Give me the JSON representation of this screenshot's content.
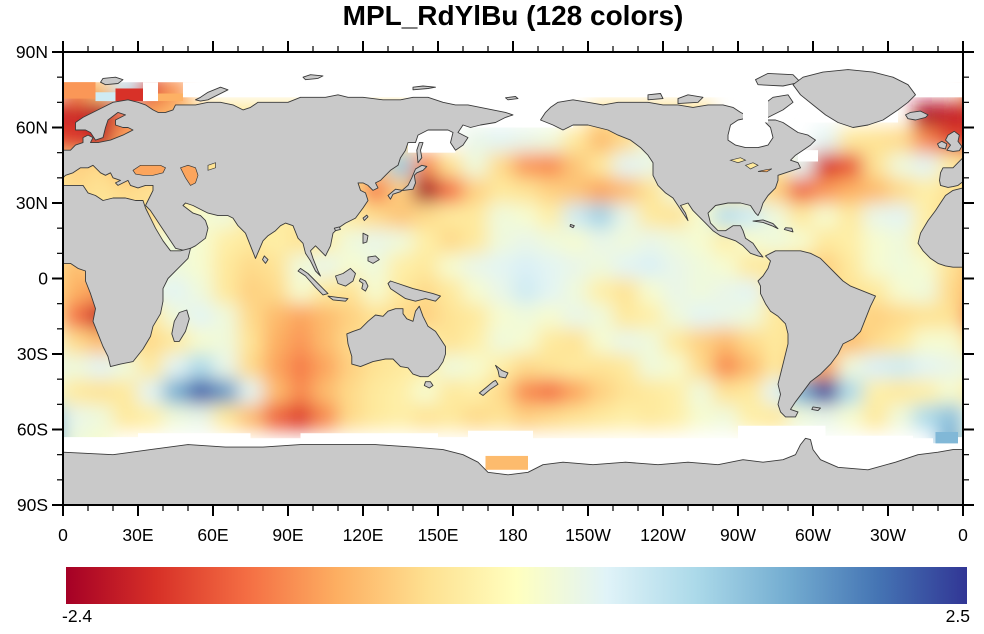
{
  "title": "MPL_RdYlBu (128 colors)",
  "chart_data": {
    "type": "heatmap",
    "title": "MPL_RdYlBu (128 colors)",
    "colormap": {
      "name": "MPL_RdYlBu",
      "n_colors": 128,
      "anchors": [
        "#a50026",
        "#d73027",
        "#f46d43",
        "#fdae61",
        "#fee090",
        "#ffffbf",
        "#e0f3f8",
        "#abd9e9",
        "#74add1",
        "#4575b4",
        "#313695"
      ]
    },
    "colorbar": {
      "orientation": "horizontal",
      "min": -2.4,
      "max": 2.5,
      "min_label": "-2.4",
      "max_label": "2.5"
    },
    "x_axis": {
      "tick_labels": [
        "0",
        "30E",
        "60E",
        "90E",
        "120E",
        "150E",
        "180",
        "150W",
        "120W",
        "90W",
        "60W",
        "30W",
        "0"
      ],
      "major_step_deg": 30,
      "minor_step_deg": 10,
      "lon_range": [
        0,
        360
      ]
    },
    "y_axis": {
      "tick_labels": [
        "90N",
        "60N",
        "30N",
        "0",
        "30S",
        "60S",
        "90S"
      ],
      "tick_lats": [
        90,
        60,
        30,
        0,
        -30,
        -60,
        -90
      ],
      "major_step_deg": 30,
      "minor_step_deg": 10,
      "lat_range": [
        -90,
        90
      ]
    },
    "map": {
      "land_color": "#c9c9c9",
      "coast_color": "#3a3a3a",
      "missing_color": "#ffffff",
      "projection": "equirectangular"
    },
    "grid": {
      "lon_start": 5,
      "lon_step": 10,
      "lat_start": 85,
      "lat_step": -10,
      "values": [
        [
          null,
          null,
          null,
          null,
          null,
          null,
          null,
          null,
          null,
          null,
          null,
          null,
          null,
          null,
          null,
          null,
          null,
          null,
          null,
          null,
          null,
          null,
          null,
          null,
          null,
          null,
          null,
          null,
          null,
          null,
          null,
          null,
          null,
          null,
          null,
          null
        ],
        [
          -1.2,
          -0.7,
          0.8,
          -1.8,
          -1.1,
          null,
          null,
          null,
          null,
          null,
          null,
          null,
          null,
          null,
          null,
          null,
          null,
          null,
          null,
          null,
          null,
          null,
          null,
          null,
          null,
          null,
          null,
          null,
          null,
          null,
          null,
          null,
          null,
          null,
          null,
          null
        ],
        [
          -2.0,
          -2.3,
          -1.4,
          -1.0,
          -0.8,
          -0.5,
          -0.3,
          -0.3,
          -0.3,
          -0.3,
          -0.3,
          -0.3,
          -0.3,
          -0.3,
          null,
          null,
          null,
          null,
          null,
          null,
          null,
          -0.4,
          -0.4,
          -0.4,
          -0.4,
          -0.4,
          null,
          null,
          null,
          null,
          null,
          null,
          null,
          null,
          -2.3,
          -2.1
        ],
        [
          -1.8,
          -2.1,
          -1.0,
          -0.6,
          -0.5,
          -0.4,
          -0.4,
          -0.4,
          -0.4,
          -0.4,
          -0.4,
          -0.4,
          -0.4,
          -0.3,
          null,
          null,
          0.4,
          0.5,
          0.4,
          0.3,
          -0.3,
          -0.8,
          -0.5,
          0.3,
          -0.3,
          -0.3,
          -0.3,
          null,
          null,
          null,
          0.5,
          -0.3,
          -0.4,
          -0.5,
          -1.2,
          -1.7
        ],
        [
          -0.6,
          -0.5,
          -0.9,
          -1.0,
          -1.0,
          -0.6,
          -0.4,
          -0.4,
          -0.4,
          -0.4,
          -0.4,
          -0.4,
          -0.5,
          1.2,
          -1.2,
          -0.4,
          0.3,
          -0.5,
          -1.1,
          -1.2,
          -0.7,
          -0.3,
          0.5,
          0.4,
          -0.3,
          -0.3,
          -0.3,
          -0.3,
          -0.3,
          0.5,
          -1.9,
          -1.6,
          -0.4,
          0.3,
          0.5,
          -0.2
        ],
        [
          -0.5,
          -0.4,
          -0.5,
          -0.4,
          -0.3,
          -0.3,
          -0.3,
          -0.3,
          -0.3,
          -0.4,
          -0.4,
          -0.5,
          -1.3,
          -0.6,
          -2.4,
          -1.4,
          -0.6,
          -0.3,
          -0.4,
          -0.6,
          -0.7,
          -1.0,
          -0.8,
          -0.4,
          0.3,
          0.2,
          -0.3,
          -0.3,
          -0.6,
          -1.5,
          -1.1,
          -0.9,
          -0.8,
          -0.5,
          -0.2,
          -0.4
        ],
        [
          -0.3,
          -0.3,
          -0.4,
          -0.5,
          -0.2,
          0.2,
          0.3,
          -0.2,
          -0.3,
          -0.2,
          0.2,
          -0.3,
          -0.5,
          -0.7,
          -0.5,
          -0.3,
          -0.3,
          0.3,
          0.2,
          -0.2,
          0.7,
          1.1,
          0.4,
          -0.3,
          -0.4,
          0.2,
          0.9,
          0.7,
          0.3,
          -0.3,
          0.2,
          -0.3,
          0.4,
          0.5,
          -0.2,
          -0.5
        ],
        [
          -0.3,
          -0.3,
          -0.3,
          0.2,
          0.3,
          0.2,
          -0.2,
          -0.3,
          -0.2,
          -0.4,
          -0.2,
          0.3,
          0.4,
          0.3,
          -0.2,
          -0.5,
          -0.3,
          0.3,
          0.4,
          0.3,
          0.2,
          0.4,
          0.3,
          0.4,
          0.3,
          0.2,
          -0.2,
          0.2,
          0.3,
          0.2,
          -0.3,
          -0.2,
          0.2,
          0.3,
          -0.2,
          -0.3
        ],
        [
          -0.8,
          -0.5,
          -0.3,
          0.2,
          0.3,
          0.2,
          -0.3,
          -0.5,
          -0.4,
          0.3,
          0.4,
          0.2,
          0.3,
          -0.2,
          -0.3,
          0.2,
          0.4,
          0.5,
          0.6,
          0.5,
          0.4,
          0.3,
          0.5,
          0.6,
          0.4,
          0.3,
          0.2,
          -0.3,
          -0.3,
          -0.5,
          -0.6,
          -0.3,
          0.2,
          0.3,
          0.2,
          -0.4
        ],
        [
          -0.9,
          -1.1,
          -0.3,
          0.4,
          0.5,
          0.3,
          -0.3,
          -0.6,
          -0.5,
          0.2,
          -0.3,
          -0.4,
          0.2,
          -0.3,
          -0.5,
          -0.3,
          0.2,
          0.4,
          0.7,
          0.5,
          0.3,
          -0.2,
          -0.4,
          0.2,
          0.4,
          0.3,
          0.4,
          0.5,
          -0.3,
          -0.4,
          -0.5,
          -0.4,
          -0.3,
          0.2,
          0.3,
          -0.5
        ],
        [
          -1.4,
          -2.1,
          -0.5,
          -0.3,
          0.3,
          0.5,
          0.3,
          -0.5,
          -0.8,
          -1.0,
          -0.8,
          -0.6,
          -0.4,
          -0.5,
          -0.6,
          -0.4,
          -0.3,
          0.2,
          0.3,
          0.2,
          0.4,
          0.3,
          -0.3,
          -0.2,
          0.3,
          0.5,
          0.4,
          0.3,
          -0.3,
          -0.4,
          -0.4,
          -0.5,
          -0.6,
          -0.5,
          -0.4,
          -0.4
        ],
        [
          -0.5,
          -0.8,
          -0.4,
          -0.5,
          -0.3,
          0.2,
          0.3,
          -0.4,
          -0.9,
          -1.1,
          -0.8,
          -0.5,
          -0.4,
          -0.3,
          -0.2,
          -0.4,
          -0.2,
          0.3,
          0.2,
          -0.3,
          -0.4,
          0.2,
          0.4,
          0.3,
          -0.3,
          -0.6,
          -0.8,
          -0.5,
          -0.3,
          -0.5,
          -0.6,
          -0.8,
          -0.5,
          -0.3,
          0.2,
          0.2
        ],
        [
          0.3,
          0.5,
          0.3,
          -0.3,
          0.5,
          1.0,
          0.4,
          -0.5,
          -1.0,
          -1.3,
          -1.0,
          -0.6,
          -0.4,
          -0.3,
          -0.2,
          0.3,
          0.2,
          -0.2,
          -0.5,
          -0.4,
          -0.3,
          -0.4,
          -0.3,
          0.3,
          0.2,
          -0.5,
          -1.2,
          -0.8,
          -0.3,
          -0.8,
          -1.0,
          0.3,
          0.6,
          0.7,
          0.5,
          0.4
        ],
        [
          -0.3,
          -0.4,
          -0.3,
          0.5,
          1.5,
          2.2,
          1.7,
          0.5,
          -0.8,
          -1.2,
          -0.8,
          -0.5,
          -0.3,
          -0.2,
          0.2,
          -0.3,
          -0.2,
          -0.5,
          -1.2,
          -1.4,
          -1.0,
          -0.6,
          -0.4,
          -0.3,
          -0.2,
          0.3,
          -0.4,
          -0.3,
          0.5,
          1.5,
          2.4,
          1.0,
          -0.2,
          -0.3,
          -0.2,
          0.2
        ],
        [
          0.4,
          0.3,
          -0.3,
          -0.2,
          0.3,
          0.4,
          -0.3,
          -0.8,
          -1.5,
          -1.8,
          -1.2,
          -0.5,
          -0.3,
          -0.2,
          -0.4,
          -0.3,
          -0.5,
          -0.4,
          -0.6,
          -0.5,
          -0.4,
          -0.3,
          -0.2,
          -0.3,
          -0.2,
          0.2,
          0.3,
          -0.2,
          -0.3,
          0.3,
          0.4,
          0.2,
          -0.3,
          0.3,
          1.0,
          1.3
        ],
        [
          0.3,
          0.2,
          null,
          null,
          null,
          null,
          null,
          null,
          null,
          null,
          null,
          null,
          null,
          null,
          null,
          null,
          null,
          null,
          null,
          null,
          null,
          null,
          null,
          null,
          null,
          null,
          null,
          null,
          null,
          null,
          null,
          null,
          null,
          null,
          null,
          1.5
        ],
        [
          null,
          null,
          null,
          null,
          null,
          null,
          null,
          null,
          null,
          null,
          null,
          null,
          null,
          null,
          null,
          null,
          null,
          -0.8,
          null,
          null,
          null,
          null,
          null,
          null,
          null,
          null,
          null,
          null,
          null,
          null,
          null,
          null,
          null,
          null,
          null,
          null
        ],
        [
          null,
          null,
          null,
          null,
          null,
          null,
          null,
          null,
          null,
          null,
          null,
          null,
          null,
          null,
          null,
          null,
          null,
          null,
          null,
          null,
          null,
          null,
          null,
          null,
          null,
          null,
          null,
          null,
          null,
          null,
          null,
          null,
          null,
          null,
          null,
          null
        ]
      ]
    },
    "special_cells": [
      {
        "lon0": 0,
        "lon1": 13,
        "lat0": 71.5,
        "lat1": 78,
        "value": -1.1
      },
      {
        "lon0": 13,
        "lon1": 21,
        "lat0": 70.5,
        "lat1": 74,
        "value": 0.7
      },
      {
        "lon0": 21,
        "lon1": 32,
        "lat0": 70.5,
        "lat1": 75.5,
        "value": -1.9
      },
      {
        "lon0": 38,
        "lon1": 48,
        "lat0": 70.5,
        "lat1": 73.5,
        "value": -0.9
      },
      {
        "lon0": 169,
        "lon1": 186,
        "lat0": -76,
        "lat1": -70.5,
        "value": -0.8
      },
      {
        "lon0": 349,
        "lon1": 358,
        "lat0": -65.5,
        "lat1": -61,
        "value": 1.4
      }
    ],
    "inland_seas": {
      "black_sea": -1.0,
      "caspian_sea": -1.0,
      "aral_sea": -0.4,
      "lake_superior": -0.3,
      "lakes_michigan_huron": -0.3,
      "lakes_erie_ontario": -0.9
    }
  }
}
